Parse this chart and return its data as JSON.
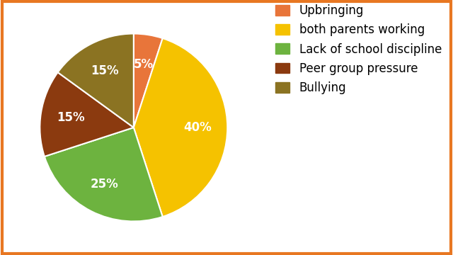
{
  "labels": [
    "Upbringing",
    "both parents working",
    "Lack of school discipline",
    "Peer group pressure",
    "Bullying"
  ],
  "values": [
    5,
    40,
    25,
    15,
    15
  ],
  "colors": [
    "#E8753A",
    "#F5C200",
    "#6DB33F",
    "#8B3A0F",
    "#8B7322"
  ],
  "pct_labels": [
    "5%",
    "40%",
    "25%",
    "15%",
    "15%"
  ],
  "startangle": 90,
  "legend_fontsize": 12,
  "border_color": "#E87722",
  "background_color": "#FFFFFF",
  "text_color_white": "white",
  "text_color_black": "black"
}
